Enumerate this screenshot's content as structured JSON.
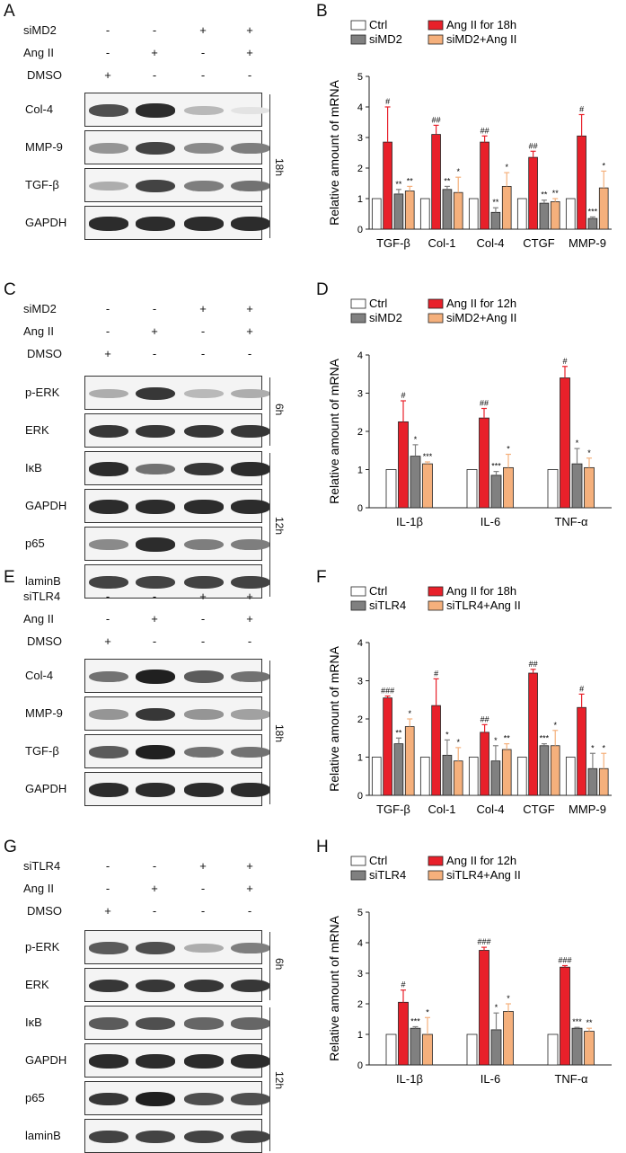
{
  "panels": [
    {
      "letter": "A",
      "type": "blot",
      "treatments": [
        {
          "name": "siMD2",
          "signs": [
            "-",
            "-",
            "+",
            "+"
          ]
        },
        {
          "name": "Ang II",
          "signs": [
            "-",
            "+",
            "-",
            "+"
          ]
        },
        {
          "name": "DMSO",
          "signs": [
            "+",
            "-",
            "-",
            "-"
          ]
        }
      ],
      "bands": [
        {
          "label": "Col-4",
          "intensity": [
            0.75,
            0.9,
            0.3,
            0.12
          ]
        },
        {
          "label": "MMP-9",
          "intensity": [
            0.45,
            0.8,
            0.5,
            0.55
          ]
        },
        {
          "label": "TGF-β",
          "intensity": [
            0.35,
            0.8,
            0.55,
            0.6
          ]
        },
        {
          "label": "GAPDH",
          "intensity": [
            0.9,
            0.9,
            0.9,
            0.9
          ]
        }
      ],
      "times": [
        {
          "label": "18h",
          "from": 0,
          "to": 4
        }
      ]
    },
    {
      "letter": "C",
      "type": "blot",
      "treatments": [
        {
          "name": "siMD2",
          "signs": [
            "-",
            "-",
            "+",
            "+"
          ]
        },
        {
          "name": "Ang II",
          "signs": [
            "-",
            "+",
            "-",
            "+"
          ]
        },
        {
          "name": "DMSO",
          "signs": [
            "+",
            "-",
            "-",
            "-"
          ]
        }
      ],
      "bands": [
        {
          "label": "p-ERK",
          "intensity": [
            0.35,
            0.85,
            0.3,
            0.35
          ]
        },
        {
          "label": "ERK",
          "intensity": [
            0.85,
            0.85,
            0.85,
            0.85
          ]
        },
        {
          "label": "IκB",
          "intensity": [
            0.9,
            0.6,
            0.85,
            0.9
          ]
        },
        {
          "label": "GAPDH",
          "intensity": [
            0.9,
            0.9,
            0.9,
            0.9
          ]
        },
        {
          "label": "p65",
          "intensity": [
            0.5,
            0.9,
            0.55,
            0.55
          ]
        },
        {
          "label": "laminB",
          "intensity": [
            0.8,
            0.8,
            0.8,
            0.8
          ]
        }
      ],
      "times": [
        {
          "label": "6h",
          "from": 0,
          "to": 2
        },
        {
          "label": "12h",
          "from": 2,
          "to": 6
        }
      ]
    },
    {
      "letter": "E",
      "type": "blot",
      "treatments": [
        {
          "name": "siTLR4",
          "signs": [
            "-",
            "-",
            "+",
            "+"
          ]
        },
        {
          "name": "Ang II",
          "signs": [
            "-",
            "+",
            "-",
            "+"
          ]
        },
        {
          "name": "DMSO",
          "signs": [
            "+",
            "-",
            "-",
            "-"
          ]
        }
      ],
      "bands": [
        {
          "label": "Col-4",
          "intensity": [
            0.6,
            0.95,
            0.7,
            0.6
          ]
        },
        {
          "label": "MMP-9",
          "intensity": [
            0.45,
            0.85,
            0.45,
            0.4
          ]
        },
        {
          "label": "TGF-β",
          "intensity": [
            0.7,
            0.95,
            0.6,
            0.6
          ]
        },
        {
          "label": "GAPDH",
          "intensity": [
            0.9,
            0.9,
            0.9,
            0.9
          ]
        }
      ],
      "times": [
        {
          "label": "18h",
          "from": 0,
          "to": 4
        }
      ]
    },
    {
      "letter": "G",
      "type": "blot",
      "treatments": [
        {
          "name": "siTLR4",
          "signs": [
            "-",
            "-",
            "+",
            "+"
          ]
        },
        {
          "name": "Ang II",
          "signs": [
            "-",
            "+",
            "-",
            "+"
          ]
        },
        {
          "name": "DMSO",
          "signs": [
            "+",
            "-",
            "-",
            "-"
          ]
        }
      ],
      "bands": [
        {
          "label": "p-ERK",
          "intensity": [
            0.7,
            0.75,
            0.35,
            0.55
          ]
        },
        {
          "label": "ERK",
          "intensity": [
            0.85,
            0.85,
            0.85,
            0.85
          ]
        },
        {
          "label": "IκB",
          "intensity": [
            0.7,
            0.75,
            0.65,
            0.65
          ]
        },
        {
          "label": "GAPDH",
          "intensity": [
            0.9,
            0.9,
            0.9,
            0.9
          ]
        },
        {
          "label": "p65",
          "intensity": [
            0.85,
            0.95,
            0.75,
            0.75
          ]
        },
        {
          "label": "laminB",
          "intensity": [
            0.8,
            0.8,
            0.8,
            0.8
          ]
        }
      ],
      "times": [
        {
          "label": "6h",
          "from": 0,
          "to": 2
        },
        {
          "label": "12h",
          "from": 2,
          "to": 6
        }
      ]
    },
    {
      "letter": "B",
      "type": "chart",
      "chart_index": 0
    },
    {
      "letter": "D",
      "type": "chart",
      "chart_index": 1
    },
    {
      "letter": "F",
      "type": "chart",
      "chart_index": 2
    },
    {
      "letter": "H",
      "type": "chart",
      "chart_index": 3
    }
  ],
  "colors": {
    "ctrl": "#ffffff",
    "angii": "#e8202a",
    "si": "#808080",
    "si_angii": "#f5b07c"
  },
  "chart_data": [
    {
      "type": "bar",
      "ylabel": "Relative amount of mRNA",
      "ylim": [
        0,
        5
      ],
      "yticks": [
        "0",
        "1",
        "2",
        "3",
        "4",
        "5"
      ],
      "categories": [
        "TGF-β",
        "Col-1",
        "Col-4",
        "CTGF",
        "MMP-9"
      ],
      "legend": [
        "Ctrl",
        "Ang II for 18h",
        "siMD2",
        "siMD2+Ang II"
      ],
      "series": [
        {
          "name": "Ctrl",
          "values": [
            1,
            1,
            1,
            1,
            1
          ],
          "err": [
            0,
            0,
            0,
            0,
            0
          ],
          "marks": [
            "",
            "",
            "",
            "",
            ""
          ]
        },
        {
          "name": "Ang II for 18h",
          "values": [
            2.85,
            3.1,
            2.85,
            2.35,
            3.05
          ],
          "err": [
            1.15,
            0.3,
            0.2,
            0.2,
            0.7
          ],
          "marks": [
            "#",
            "##",
            "##",
            "##",
            "#"
          ]
        },
        {
          "name": "siMD2",
          "values": [
            1.15,
            1.3,
            0.55,
            0.85,
            0.35
          ],
          "err": [
            0.15,
            0.1,
            0.15,
            0.1,
            0.05
          ],
          "marks": [
            "**",
            "**",
            "**",
            "**",
            "***"
          ]
        },
        {
          "name": "siMD2+Ang II",
          "values": [
            1.25,
            1.2,
            1.4,
            0.9,
            1.35
          ],
          "err": [
            0.15,
            0.5,
            0.45,
            0.1,
            0.55
          ],
          "marks": [
            "**",
            "*",
            "*",
            "**",
            "*"
          ]
        }
      ]
    },
    {
      "type": "bar",
      "ylabel": "Relative amount of mRNA",
      "ylim": [
        0,
        4
      ],
      "yticks": [
        "0",
        "1",
        "2",
        "3",
        "4"
      ],
      "categories": [
        "IL-1β",
        "IL-6",
        "TNF-α"
      ],
      "legend": [
        "Ctrl",
        "Ang II for 12h",
        "siMD2",
        "siMD2+Ang II"
      ],
      "series": [
        {
          "name": "Ctrl",
          "values": [
            1,
            1,
            1
          ],
          "err": [
            0,
            0,
            0
          ],
          "marks": [
            "",
            "",
            ""
          ]
        },
        {
          "name": "Ang II for 12h",
          "values": [
            2.25,
            2.35,
            3.4
          ],
          "err": [
            0.55,
            0.25,
            0.3
          ],
          "marks": [
            "#",
            "##",
            "#"
          ]
        },
        {
          "name": "siMD2",
          "values": [
            1.35,
            0.85,
            1.15
          ],
          "err": [
            0.3,
            0.1,
            0.4
          ],
          "marks": [
            "*",
            "***",
            "*"
          ]
        },
        {
          "name": "siMD2+Ang II",
          "values": [
            1.15,
            1.05,
            1.05
          ],
          "err": [
            0.05,
            0.35,
            0.25
          ],
          "marks": [
            "***",
            "*",
            "*"
          ]
        }
      ]
    },
    {
      "type": "bar",
      "ylabel": "Relative amount of mRNA",
      "ylim": [
        0,
        4
      ],
      "yticks": [
        "0",
        "1",
        "2",
        "3",
        "4"
      ],
      "categories": [
        "TGF-β",
        "Col-1",
        "Col-4",
        "CTGF",
        "MMP-9"
      ],
      "legend": [
        "Ctrl",
        "Ang II for 18h",
        "siTLR4",
        "siTLR4+Ang II"
      ],
      "series": [
        {
          "name": "Ctrl",
          "values": [
            1,
            1,
            1,
            1,
            1
          ],
          "err": [
            0,
            0,
            0,
            0,
            0
          ],
          "marks": [
            "",
            "",
            "",
            "",
            ""
          ]
        },
        {
          "name": "Ang II for 18h",
          "values": [
            2.55,
            2.35,
            1.65,
            3.2,
            2.3
          ],
          "err": [
            0.05,
            0.7,
            0.2,
            0.1,
            0.35
          ],
          "marks": [
            "###",
            "#",
            "##",
            "##",
            "#"
          ]
        },
        {
          "name": "siTLR4",
          "values": [
            1.35,
            1.05,
            0.9,
            1.3,
            0.7
          ],
          "err": [
            0.15,
            0.4,
            0.4,
            0.05,
            0.4
          ],
          "marks": [
            "**",
            "*",
            "*",
            "***",
            "*"
          ]
        },
        {
          "name": "siTLR4+Ang II",
          "values": [
            1.8,
            0.9,
            1.2,
            1.3,
            0.7
          ],
          "err": [
            0.2,
            0.35,
            0.15,
            0.4,
            0.4
          ],
          "marks": [
            "*",
            "*",
            "**",
            "*",
            "*"
          ]
        }
      ]
    },
    {
      "type": "bar",
      "ylabel": "Relative amount of mRNA",
      "ylim": [
        0,
        5
      ],
      "yticks": [
        "0",
        "1",
        "2",
        "3",
        "4",
        "5"
      ],
      "categories": [
        "IL-1β",
        "IL-6",
        "TNF-α"
      ],
      "legend": [
        "Ctrl",
        "Ang II for 12h",
        "siTLR4",
        "siTLR4+Ang II"
      ],
      "series": [
        {
          "name": "Ctrl",
          "values": [
            1,
            1,
            1
          ],
          "err": [
            0,
            0,
            0
          ],
          "marks": [
            "",
            "",
            ""
          ]
        },
        {
          "name": "Ang II for 12h",
          "values": [
            2.05,
            3.75,
            3.2
          ],
          "err": [
            0.4,
            0.1,
            0.05
          ],
          "marks": [
            "#",
            "###",
            "###"
          ]
        },
        {
          "name": "siTLR4",
          "values": [
            1.2,
            1.15,
            1.2
          ],
          "err": [
            0.05,
            0.55,
            0.03
          ],
          "marks": [
            "***",
            "*",
            "***"
          ]
        },
        {
          "name": "siTLR4+Ang II",
          "values": [
            1.0,
            1.75,
            1.1
          ],
          "err": [
            0.55,
            0.25,
            0.1
          ],
          "marks": [
            "*",
            "*",
            "**"
          ]
        }
      ]
    }
  ]
}
